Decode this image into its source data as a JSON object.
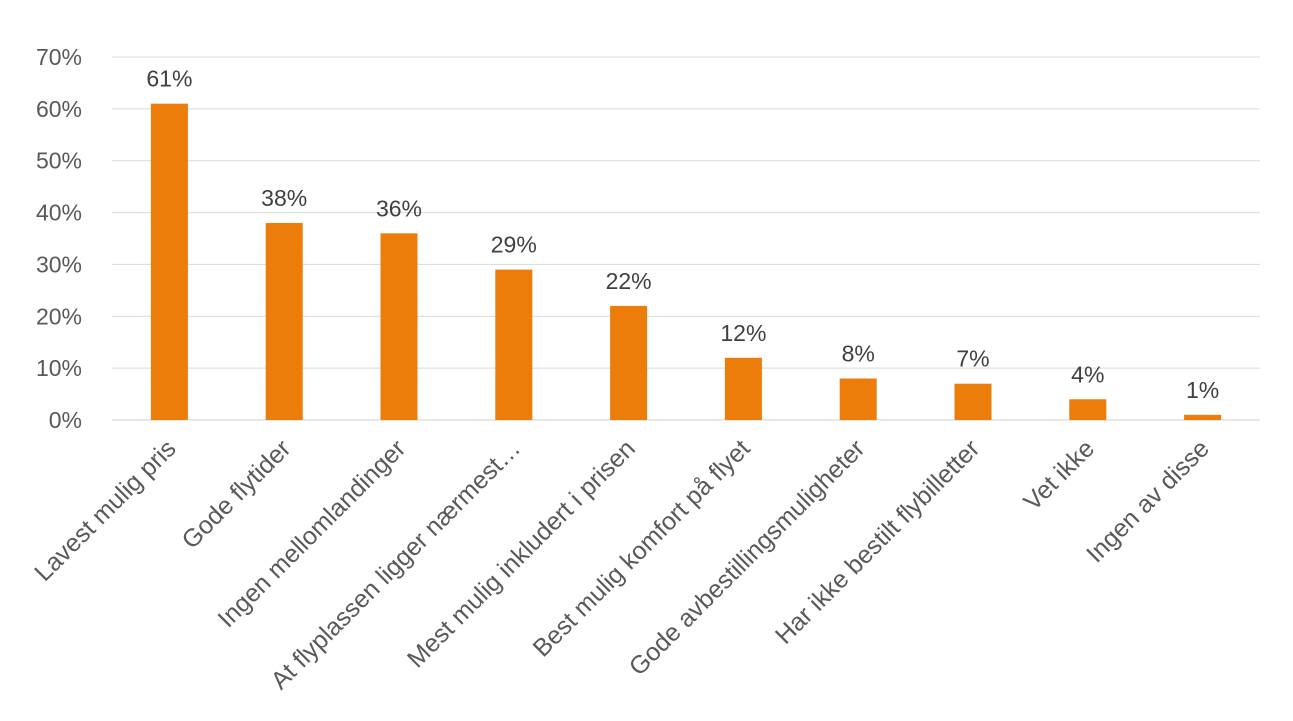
{
  "chart_data": {
    "type": "bar",
    "title": "",
    "xlabel": "",
    "ylabel": "",
    "categories": [
      "Lavest mulig pris",
      "Gode flytider",
      "Ingen mellomlandinger",
      "At flyplassen ligger nærmest…",
      "Mest mulig inkludert i prisen",
      "Best mulig komfort på flyet",
      "Gode avbestillingsmuligheter",
      "Har ikke bestilt flybilletter",
      "Vet ikke",
      "Ingen av disse"
    ],
    "values": [
      61,
      38,
      36,
      29,
      22,
      12,
      8,
      7,
      4,
      1
    ],
    "value_labels": [
      "61%",
      "38%",
      "36%",
      "29%",
      "22%",
      "12%",
      "8%",
      "7%",
      "4%",
      "1%"
    ],
    "ylim": [
      0,
      70
    ],
    "y_ticks": [
      0,
      10,
      20,
      30,
      40,
      50,
      60,
      70
    ],
    "y_tick_labels": [
      "0%",
      "10%",
      "20%",
      "30%",
      "40%",
      "50%",
      "60%",
      "70%"
    ],
    "grid": true,
    "legend": "none",
    "bar_color": "#ed7d0b"
  }
}
